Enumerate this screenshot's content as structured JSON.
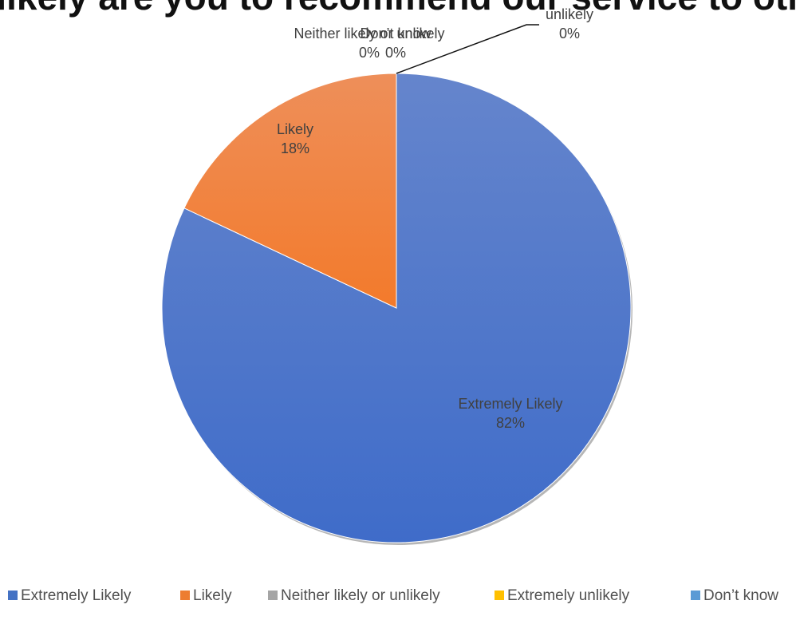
{
  "chart_data": {
    "type": "pie",
    "title": "How likely are you to recommend our service to others?",
    "categories": [
      "Extremely Likely",
      "Likely",
      "Neither likely or unlikely",
      "Extremely unlikely",
      "Don’t know"
    ],
    "values": [
      82,
      18,
      0,
      0,
      0
    ],
    "data_labels": [
      {
        "name": "Extremely Likely",
        "value": "82%"
      },
      {
        "name": "Likely",
        "value": "18%"
      },
      {
        "name": "Neither likely or unlikely",
        "value": "0%"
      },
      {
        "name": "Extremely unlikely",
        "value": "0%"
      },
      {
        "name": "Don’t know",
        "value": "0%"
      }
    ],
    "colors": [
      "#4472C4",
      "#ED7D31",
      "#A5A5A5",
      "#FFC000",
      "#5B9BD5"
    ],
    "legend": "bottom"
  }
}
